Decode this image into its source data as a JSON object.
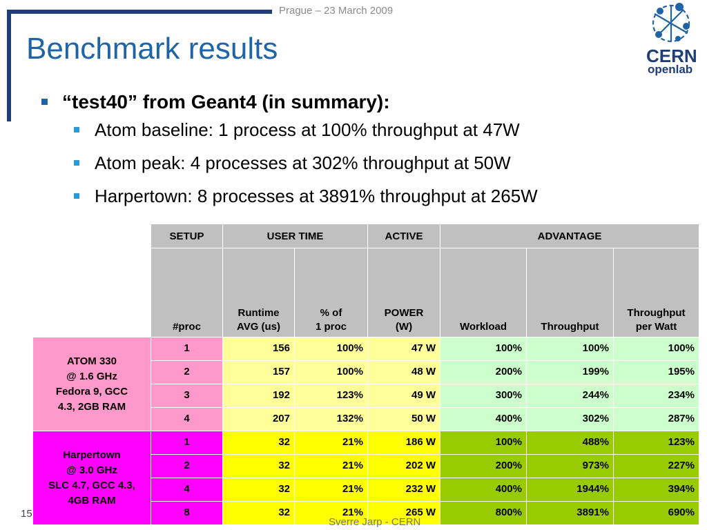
{
  "header": {
    "date": "Prague – 23 March 2009"
  },
  "title": "Benchmark results",
  "logo": {
    "line1": "CERN",
    "line2": "openlab"
  },
  "bullets": {
    "main": "“test40” from Geant4 (in summary):",
    "sub": [
      "Atom baseline: 1 process at 100% throughput at 47W",
      "Atom peak: 4 processes at 302% throughput at 50W",
      "Harpertown: 8 processes at 3891% throughput at 265W"
    ]
  },
  "table": {
    "group_headers": {
      "setup": "SETUP",
      "user_time": "USER TIME",
      "active": "ACTIVE",
      "advantage": "ADVANTAGE"
    },
    "columns": {
      "proc": "#proc",
      "runtime_1": "Runtime",
      "runtime_2": "AVG (us)",
      "pct_1": "% of",
      "pct_2": "1 proc",
      "power_1": "POWER",
      "power_2": "(W)",
      "workload": "Workload",
      "throughput": "Throughput",
      "tpw_1": "Throughput",
      "tpw_2": "per Watt"
    },
    "groups": [
      {
        "label_lines": [
          "ATOM 330",
          "@ 1.6 GHz",
          "Fedora 9, GCC",
          "4.3, 2GB RAM"
        ],
        "rows": [
          {
            "proc": "1",
            "runtime": "156",
            "pct": "100%",
            "power": "47 W",
            "workload": "100%",
            "throughput": "100%",
            "tpw": "100%"
          },
          {
            "proc": "2",
            "runtime": "157",
            "pct": "100%",
            "power": "48 W",
            "workload": "200%",
            "throughput": "199%",
            "tpw": "195%"
          },
          {
            "proc": "3",
            "runtime": "192",
            "pct": "123%",
            "power": "49 W",
            "workload": "300%",
            "throughput": "244%",
            "tpw": "234%"
          },
          {
            "proc": "4",
            "runtime": "207",
            "pct": "132%",
            "power": "50 W",
            "workload": "400%",
            "throughput": "302%",
            "tpw": "287%"
          }
        ]
      },
      {
        "label_lines": [
          "Harpertown",
          "@ 3.0 GHz",
          "SLC 4.7, GCC 4.3,",
          "4GB RAM"
        ],
        "rows": [
          {
            "proc": "1",
            "runtime": "32",
            "pct": "21%",
            "power": "186 W",
            "workload": "100%",
            "throughput": "488%",
            "tpw": "123%"
          },
          {
            "proc": "2",
            "runtime": "32",
            "pct": "21%",
            "power": "202 W",
            "workload": "200%",
            "throughput": "973%",
            "tpw": "227%"
          },
          {
            "proc": "4",
            "runtime": "32",
            "pct": "21%",
            "power": "232 W",
            "workload": "400%",
            "throughput": "1944%",
            "tpw": "394%"
          },
          {
            "proc": "8",
            "runtime": "32",
            "pct": "21%",
            "power": "265 W",
            "workload": "800%",
            "throughput": "3891%",
            "tpw": "690%"
          }
        ]
      }
    ]
  },
  "footer": {
    "page": "15",
    "author": "Sverre Jarp - CERN"
  },
  "colors": {
    "title": "#1e64a6",
    "frame": "#1f3d77",
    "atom_label": "#ff99cc",
    "atom_user_time": "#ffff99",
    "atom_advantage": "#ccffcc",
    "harpertown_label": "#ff00ff",
    "harpertown_user_time": "#ffff00",
    "harpertown_advantage": "#99cc00",
    "header_gray": "#c0c0c0"
  }
}
